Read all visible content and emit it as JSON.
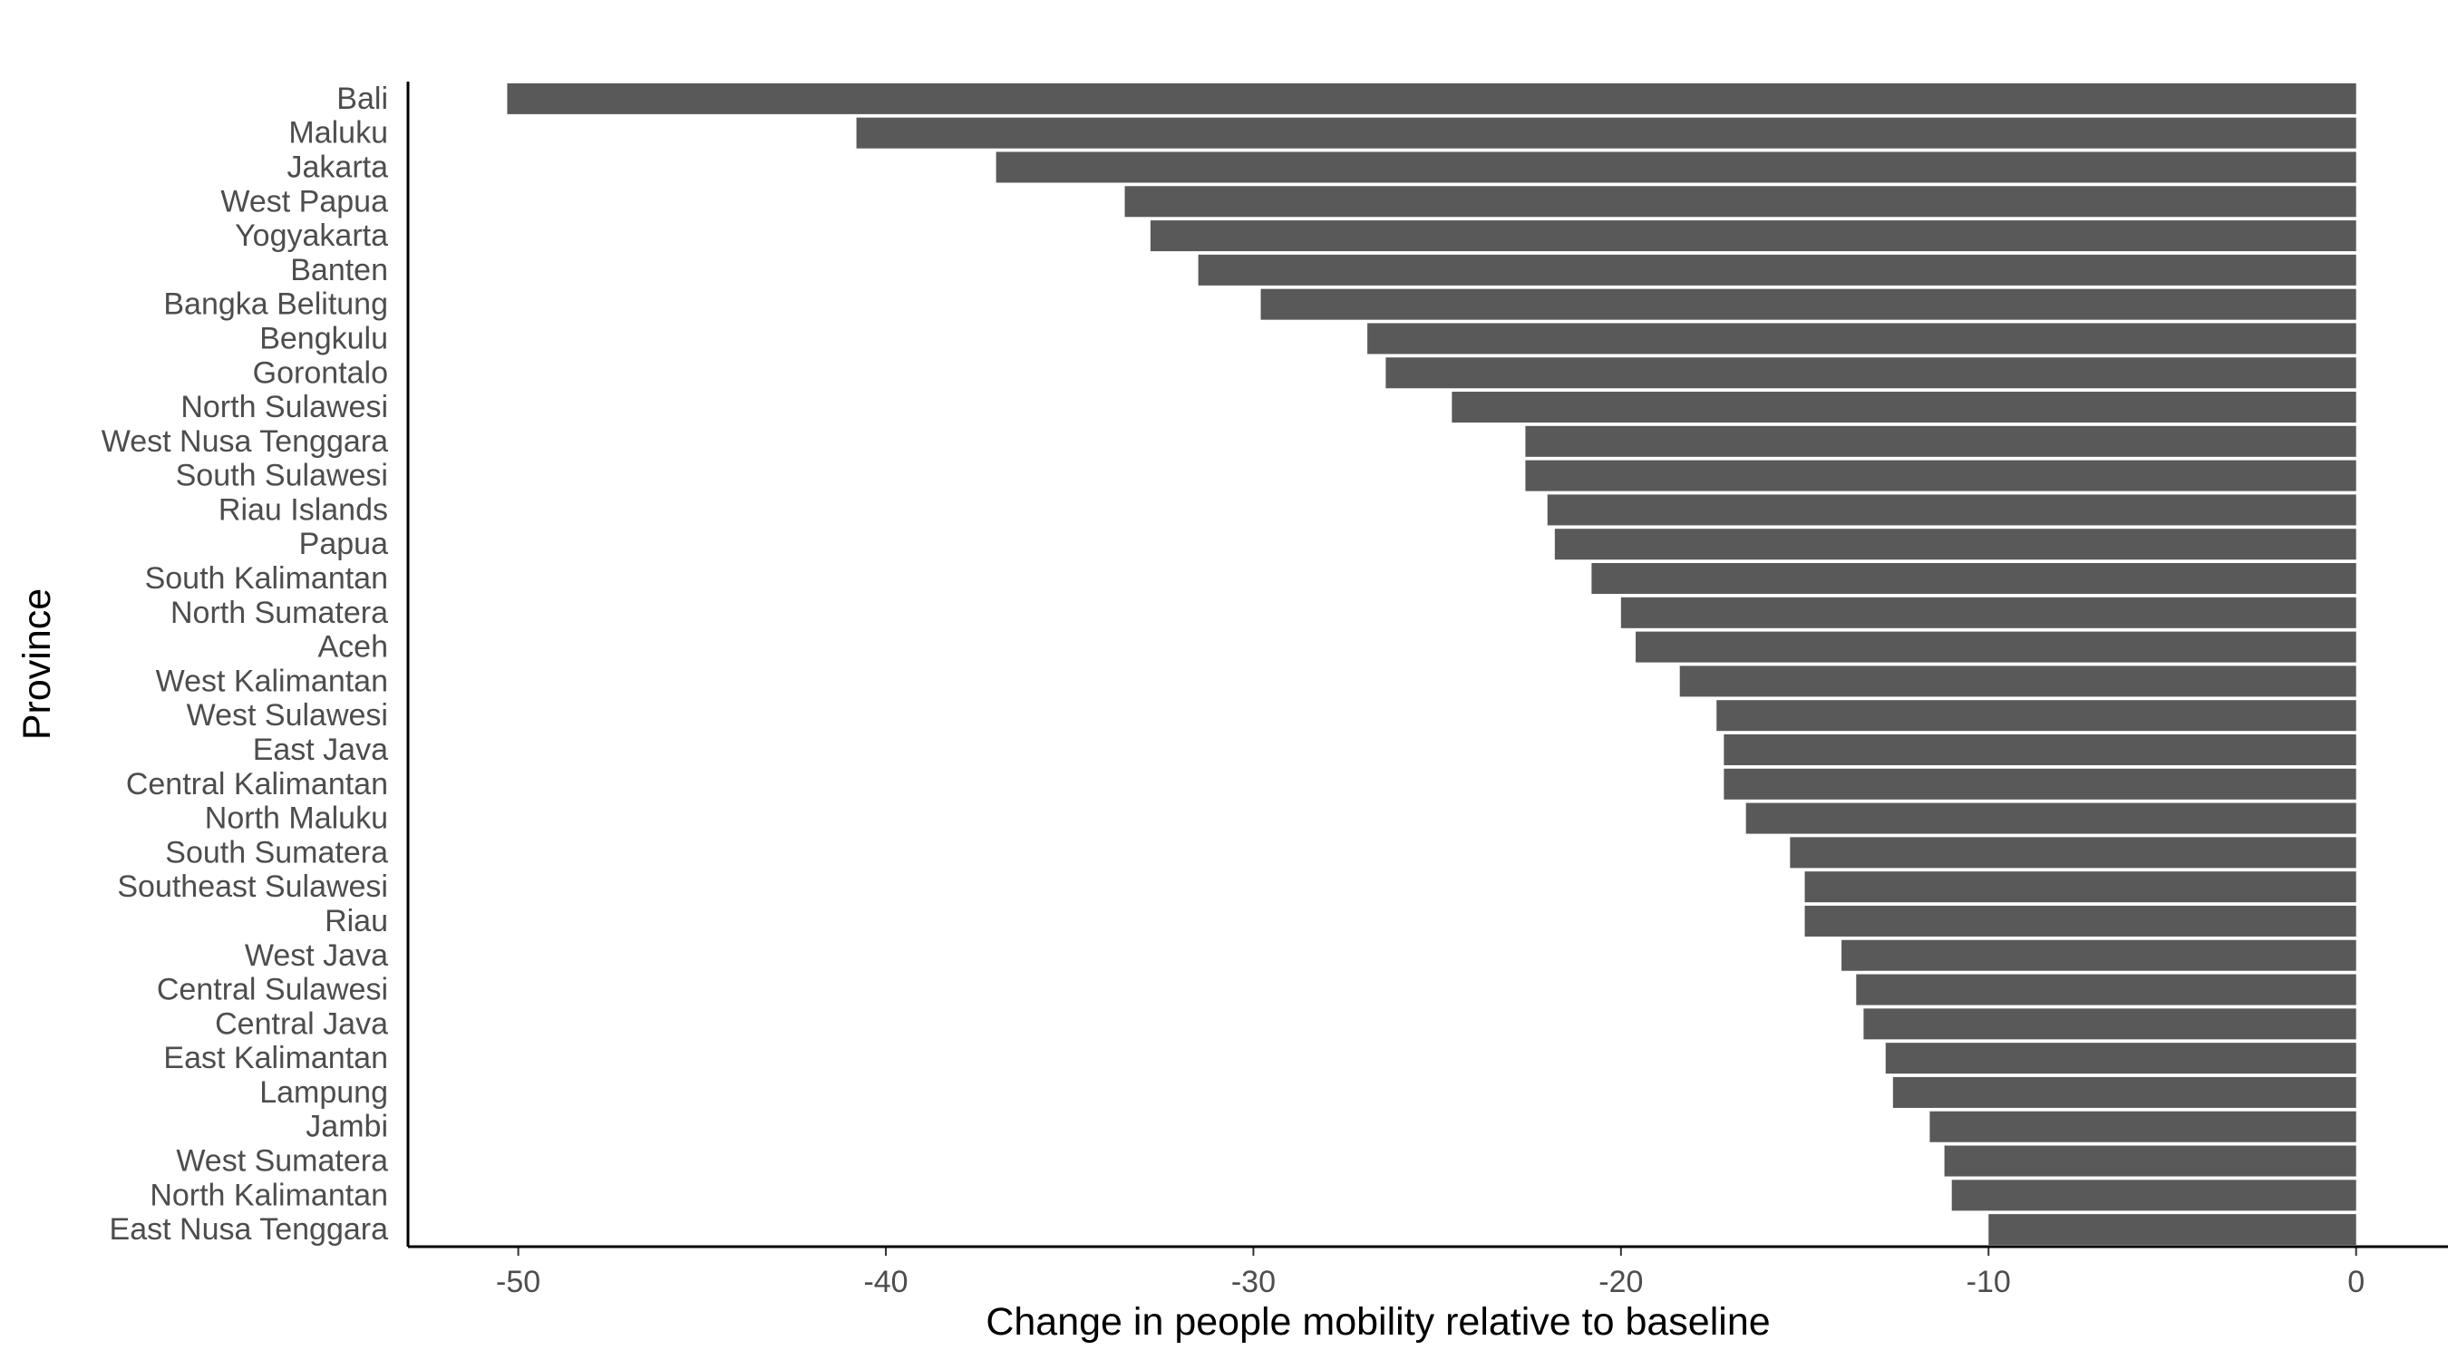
{
  "chart_data": {
    "type": "bar",
    "orientation": "horizontal",
    "xlabel": "Change in people mobility relative to baseline",
    "ylabel": "Province",
    "xlim": [
      -53,
      2.5
    ],
    "x_ticks": [
      -50,
      -40,
      -30,
      -20,
      -10,
      0
    ],
    "grid": false,
    "bar_color": "#595959",
    "categories": [
      "Bali",
      "Maluku",
      "Jakarta",
      "West Papua",
      "Yogyakarta",
      "Banten",
      "Bangka Belitung",
      "Bengkulu",
      "Gorontalo",
      "North Sulawesi",
      "West Nusa Tenggara",
      "South Sulawesi",
      "Riau Islands",
      "Papua",
      "South Kalimantan",
      "North Sumatera",
      "Aceh",
      "West Kalimantan",
      "West Sulawesi",
      "East Java",
      "Central Kalimantan",
      "North Maluku",
      "South Sumatera",
      "Southeast Sulawesi",
      "Riau",
      "West Java",
      "Central Sulawesi",
      "Central Java",
      "East Kalimantan",
      "Lampung",
      "Jambi",
      "West Sumatera",
      "North Kalimantan",
      "East Nusa Tenggara"
    ],
    "values": [
      -50.3,
      -40.8,
      -37.0,
      -33.5,
      -32.8,
      -31.5,
      -29.8,
      -26.9,
      -26.4,
      -24.6,
      -22.6,
      -22.6,
      -22.0,
      -21.8,
      -20.8,
      -20.0,
      -19.6,
      -18.4,
      -17.4,
      -17.2,
      -17.2,
      -16.6,
      -15.4,
      -15.0,
      -15.0,
      -14.0,
      -13.6,
      -13.4,
      -12.8,
      -12.6,
      -11.6,
      -11.2,
      -11.0,
      -10.0
    ]
  }
}
